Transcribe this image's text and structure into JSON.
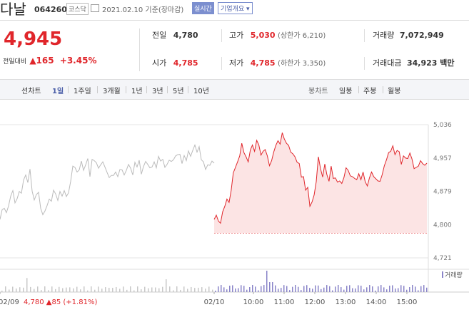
{
  "header": {
    "name": "다날",
    "code": "064260",
    "market": "코스닥",
    "date": "2021.02.10 기준(장마감)",
    "realtime": "실시간",
    "corp_info": "기업개요 ▾"
  },
  "price": {
    "current": "4,945",
    "change_label": "전일대비",
    "change": "▲165",
    "change_pct": "+3.45%"
  },
  "info": {
    "prev_label": "전일",
    "prev": "4,780",
    "high_label": "고가",
    "high": "5,030",
    "upper_limit": "(상한가 6,210)",
    "volume_label": "거래량",
    "volume": "7,072,949",
    "open_label": "시가",
    "open": "4,785",
    "low_label": "저가",
    "low": "4,785",
    "lower_limit": "(하한가 3,350)",
    "amount_label": "거래대금",
    "amount": "34,923 백만"
  },
  "tabs": {
    "left": [
      "선차트",
      "1일",
      "1주일",
      "3개월",
      "1년",
      "3년",
      "5년",
      "10년"
    ],
    "right": [
      "봉차트",
      "일봉",
      "주봉",
      "월봉"
    ]
  },
  "chart_data": {
    "type": "line",
    "y_ticks": [
      "5,036",
      "4,957",
      "4,879",
      "4,800",
      "4,721"
    ],
    "ylim": [
      4721,
      5036
    ],
    "x_ticks": [
      "02/09",
      "02/10",
      "10:00",
      "11:00",
      "12:00",
      "13:00",
      "14:00",
      "15:00"
    ],
    "footer_prev": "02/09",
    "footer_info": "4,780 ▲85 (+1.81%)",
    "volume_label": "거래량",
    "base_price": 4780,
    "colors": {
      "up": "#e0262b",
      "fill": "#fce4e4",
      "prev": "#bbbbbb",
      "volume": "#8a84c8",
      "prev_volume": "#c8c8c8"
    },
    "series": [
      {
        "values": [
          4812,
          4822,
          4808,
          4803,
          4830,
          4843,
          4860,
          4852,
          4880,
          4922,
          4935,
          4948,
          4962,
          4992,
          4970,
          4960,
          4948,
          4976,
          4988,
          4973,
          4999,
          4988,
          4964,
          4973,
          4977,
          4962,
          4939,
          4951,
          4971,
          4987,
          4998,
          4990,
          5017,
          5002,
          4992,
          4987,
          4971,
          4967,
          4960,
          4947,
          4944,
          4912,
          4913,
          4881,
          4888,
          4843,
          4853,
          4870,
          4901,
          4960,
          4932,
          4912,
          4943,
          4918,
          4902,
          4938,
          4909,
          4910,
          4900,
          4903,
          4897,
          4911,
          4934,
          4928,
          4915,
          4913,
          4909,
          4906,
          4920,
          4906,
          4924,
          4901,
          4891,
          4910,
          4924,
          4913,
          4908,
          4903,
          4902,
          4918,
          4939,
          4953,
          4970,
          4973,
          4986,
          4965,
          4975,
          4972,
          4942,
          4962,
          4957,
          4956,
          4969,
          4955,
          4932,
          4935,
          4938,
          4951,
          4944,
          4940,
          4945
        ]
      },
      {
        "values": [
          4812,
          4835,
          4838,
          4828,
          4844,
          4867,
          4880,
          4851,
          4861,
          4878,
          4874,
          4905,
          4917,
          4899,
          4931,
          4879,
          4858,
          4871,
          4876,
          4838,
          4823,
          4832,
          4845,
          4860,
          4855,
          4881,
          4872,
          4857,
          4878,
          4867,
          4880,
          4866,
          4875,
          4902,
          4938,
          4935,
          4924,
          4929,
          4950,
          4928,
          4941,
          4956,
          4913,
          4954,
          4951,
          4946,
          4933,
          4941,
          4948,
          4936,
          4923,
          4911,
          4916,
          4916,
          4924,
          4913,
          4930,
          4929,
          4917,
          4928,
          4942,
          4933,
          4917,
          4947,
          4936,
          4952,
          4919,
          4937,
          4949,
          4942,
          4934,
          4936,
          4948,
          4934,
          4961,
          4950,
          4954,
          4935,
          4942,
          4952,
          4949,
          4953,
          4962,
          4965,
          4966,
          4944,
          4963,
          4951,
          4974,
          4961,
          4975,
          4988,
          4971,
          4984,
          4953,
          4948,
          4930,
          4941,
          4940,
          4950,
          4945
        ]
      }
    ]
  }
}
